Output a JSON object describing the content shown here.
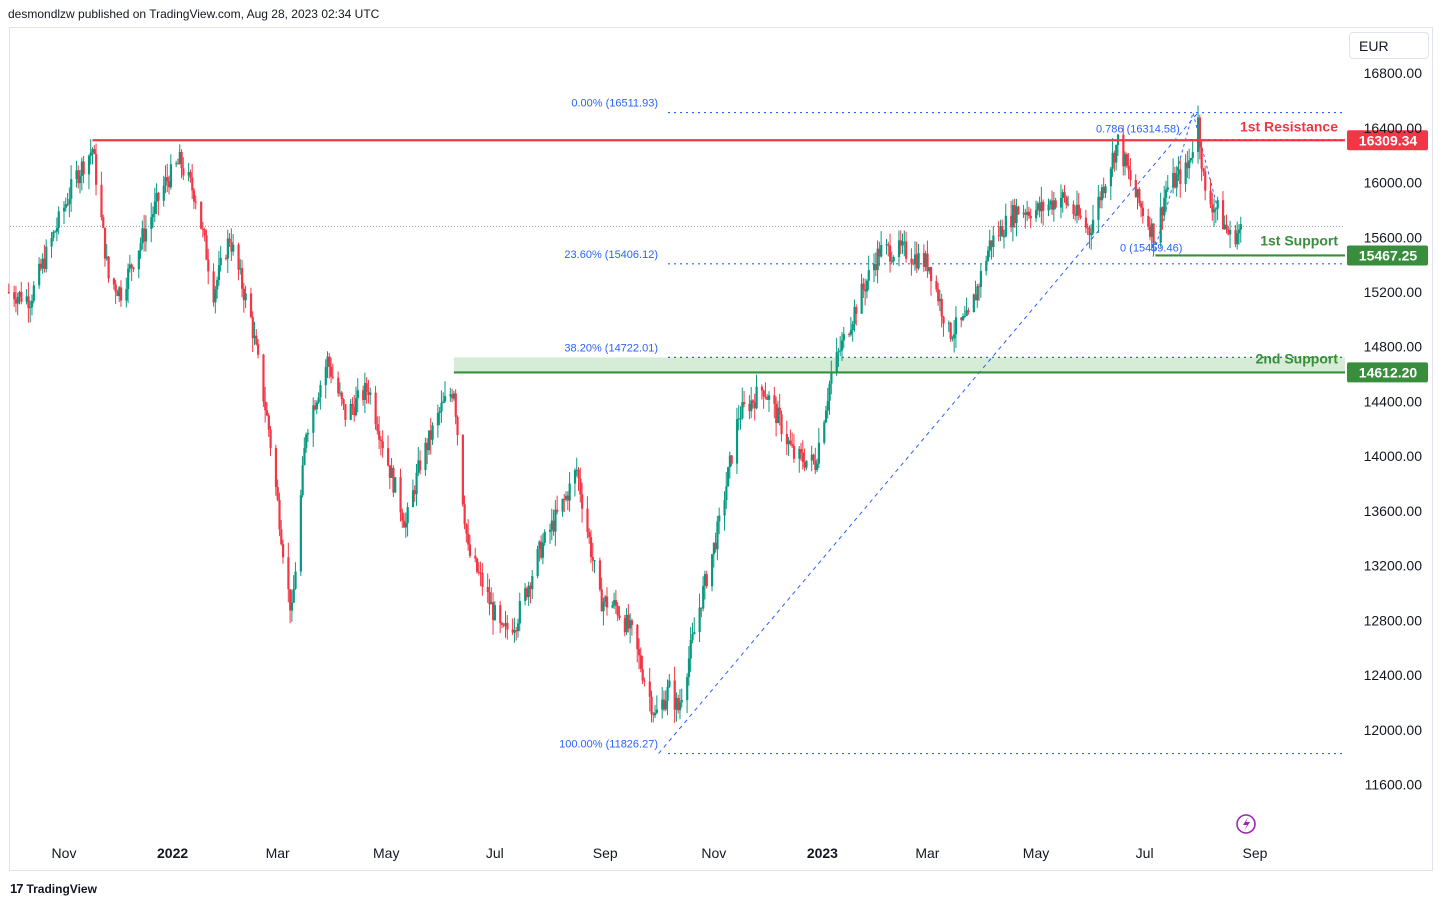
{
  "header": {
    "publisher_line": "desmondlzw published on TradingView.com, Aug 28, 2023 02:34 UTC"
  },
  "footer": {
    "brand": "TradingView",
    "logo_glyph": "17"
  },
  "currency_selector": {
    "value": "EUR"
  },
  "colors": {
    "up": "#089981",
    "down": "#f23645",
    "resistance": "#f23645",
    "support": "#388e3c",
    "fib": "#2962ff",
    "zone": "#c8e6c9",
    "axis_text": "#131722"
  },
  "chart_data": {
    "type": "candlestick",
    "instrument_currency": "EUR",
    "ylim": [
      11400,
      16900
    ],
    "y_ticks": [
      11600,
      12000,
      12400,
      12800,
      13200,
      13600,
      14000,
      14400,
      14800,
      15200,
      15600,
      16000,
      16400,
      16800
    ],
    "y_tick_labels": [
      "11600.00",
      "12000.00",
      "12400.00",
      "12800.00",
      "13200.00",
      "13600.00",
      "14000.00",
      "14400.00",
      "14800.00",
      "15200.00",
      "15600.00",
      "16000.00",
      "16400.00",
      "16800.00"
    ],
    "x_range": [
      "2021-10-01",
      "2023-09-25"
    ],
    "x_ticks": [
      {
        "date": "2021-11-01",
        "label": "Nov",
        "bold": false
      },
      {
        "date": "2022-01-01",
        "label": "2022",
        "bold": true
      },
      {
        "date": "2022-03-01",
        "label": "Mar",
        "bold": false
      },
      {
        "date": "2022-05-01",
        "label": "May",
        "bold": false
      },
      {
        "date": "2022-07-01",
        "label": "Jul",
        "bold": false
      },
      {
        "date": "2022-09-01",
        "label": "Sep",
        "bold": false
      },
      {
        "date": "2022-11-01",
        "label": "Nov",
        "bold": false
      },
      {
        "date": "2023-01-01",
        "label": "2023",
        "bold": true
      },
      {
        "date": "2023-03-01",
        "label": "Mar",
        "bold": false
      },
      {
        "date": "2023-05-01",
        "label": "May",
        "bold": false
      },
      {
        "date": "2023-07-01",
        "label": "Jul",
        "bold": false
      },
      {
        "date": "2023-09-01",
        "label": "Sep",
        "bold": false
      }
    ],
    "price_path": [
      [
        "2021-10-01",
        15200
      ],
      [
        "2021-10-13",
        15150
      ],
      [
        "2021-10-27",
        15650
      ],
      [
        "2021-11-08",
        16050
      ],
      [
        "2021-11-17",
        16250
      ],
      [
        "2021-11-26",
        15300
      ],
      [
        "2021-12-03",
        15200
      ],
      [
        "2021-12-15",
        15600
      ],
      [
        "2021-12-28",
        16000
      ],
      [
        "2022-01-05",
        16150
      ],
      [
        "2022-01-14",
        15900
      ],
      [
        "2022-01-24",
        15200
      ],
      [
        "2022-02-02",
        15600
      ],
      [
        "2022-02-14",
        15000
      ],
      [
        "2022-02-24",
        14200
      ],
      [
        "2022-03-07",
        13000
      ],
      [
        "2022-03-09",
        12850
      ],
      [
        "2022-03-17",
        14200
      ],
      [
        "2022-03-29",
        14700
      ],
      [
        "2022-04-08",
        14300
      ],
      [
        "2022-04-21",
        14500
      ],
      [
        "2022-05-03",
        13900
      ],
      [
        "2022-05-12",
        13500
      ],
      [
        "2022-05-20",
        13950
      ],
      [
        "2022-06-01",
        14350
      ],
      [
        "2022-06-08",
        14500
      ],
      [
        "2022-06-13",
        13700
      ],
      [
        "2022-06-16",
        13300
      ],
      [
        "2022-06-23",
        13100
      ],
      [
        "2022-07-05",
        12700
      ],
      [
        "2022-07-13",
        12800
      ],
      [
        "2022-07-26",
        13300
      ],
      [
        "2022-08-10",
        13700
      ],
      [
        "2022-08-16",
        13900
      ],
      [
        "2022-08-29",
        12950
      ],
      [
        "2022-09-07",
        12900
      ],
      [
        "2022-09-16",
        12700
      ],
      [
        "2022-09-29",
        12100
      ],
      [
        "2022-10-07",
        12300
      ],
      [
        "2022-10-12",
        12150
      ],
      [
        "2022-10-24",
        12900
      ],
      [
        "2022-11-04",
        13500
      ],
      [
        "2022-11-15",
        14300
      ],
      [
        "2022-11-29",
        14500
      ],
      [
        "2022-12-08",
        14250
      ],
      [
        "2022-12-16",
        14000
      ],
      [
        "2022-12-28",
        13950
      ],
      [
        "2023-01-06",
        14600
      ],
      [
        "2023-01-20",
        15100
      ],
      [
        "2023-02-02",
        15500
      ],
      [
        "2023-02-16",
        15500
      ],
      [
        "2023-03-02",
        15400
      ],
      [
        "2023-03-13",
        14900
      ],
      [
        "2023-03-24",
        15000
      ],
      [
        "2023-04-05",
        15550
      ],
      [
        "2023-04-20",
        15800
      ],
      [
        "2023-05-03",
        15800
      ],
      [
        "2023-05-15",
        15900
      ],
      [
        "2023-05-31",
        15650
      ],
      [
        "2023-06-07",
        15950
      ],
      [
        "2023-06-16",
        16300
      ],
      [
        "2023-06-26",
        15900
      ],
      [
        "2023-07-07",
        15600
      ],
      [
        "2023-07-13",
        15950
      ],
      [
        "2023-07-25",
        16100
      ],
      [
        "2023-07-31",
        16450
      ],
      [
        "2023-08-04",
        15900
      ],
      [
        "2023-08-11",
        15800
      ],
      [
        "2023-08-18",
        15600
      ],
      [
        "2023-08-24",
        15650
      ]
    ],
    "lines": [
      {
        "kind": "resistance",
        "name": "1st Resistance",
        "value": 16309.34,
        "label": "16309.34",
        "from": "2021-11-17"
      },
      {
        "kind": "support",
        "name": "1st Support",
        "value": 15467.25,
        "label": "15467.25",
        "from": "2023-07-07"
      },
      {
        "kind": "support",
        "name": "2nd Support",
        "value": 14612.2,
        "label": "14612.20",
        "from": "2022-06-08"
      }
    ],
    "support_zone": {
      "from": "2022-06-08",
      "low": 14612.2,
      "high": 14722.01
    },
    "fib_retracement": {
      "from": "2022-10-01",
      "levels": [
        {
          "label": "0.00% (16511.93)",
          "value": 16511.93
        },
        {
          "label": "23.60% (15406.12)",
          "value": 15406.12
        },
        {
          "label": "38.20% (14722.01)",
          "value": 14722.01
        },
        {
          "label": "100.00% (11826.27)",
          "value": 11826.27
        }
      ],
      "trend_line": [
        [
          "2022-10-01",
          11826.27
        ],
        [
          "2023-07-31",
          16511.93
        ]
      ]
    },
    "fib_small": {
      "labels": [
        {
          "label": "0.786 (16314.58)",
          "value": 16314.58
        },
        {
          "label": "0 (15459.46)",
          "value": 15459.46
        }
      ]
    },
    "last_price": 15680
  }
}
